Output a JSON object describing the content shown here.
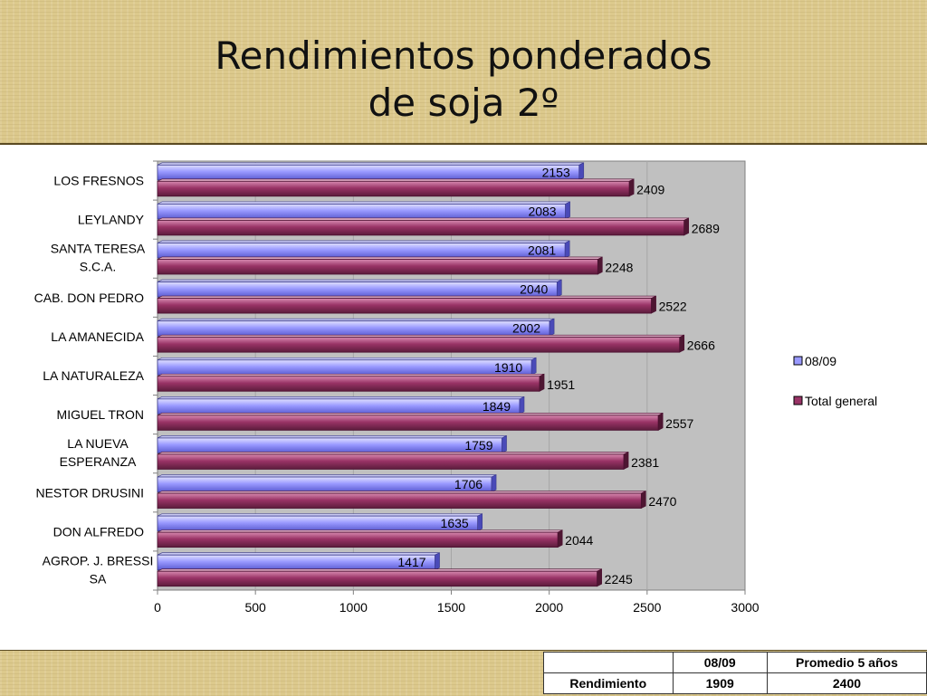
{
  "title": {
    "line1": "Rendimientos ponderados",
    "line2": "de soja 2º"
  },
  "chart_data": {
    "type": "bar",
    "orientation": "horizontal",
    "categories": [
      [
        "LOS FRESNOS"
      ],
      [
        "LEYLANDY"
      ],
      [
        "SANTA TERESA",
        "S.C.A."
      ],
      [
        "CAB. DON PEDRO"
      ],
      [
        "LA AMANECIDA"
      ],
      [
        "LA NATURALEZA"
      ],
      [
        "MIGUEL TRON"
      ],
      [
        "LA NUEVA",
        "ESPERANZA"
      ],
      [
        "NESTOR DRUSINI"
      ],
      [
        "DON ALFREDO"
      ],
      [
        "AGROP. J. BRESSI",
        "SA"
      ]
    ],
    "series": [
      {
        "name": "08/09",
        "color": "#9999ff",
        "values": [
          2153,
          2083,
          2081,
          2040,
          2002,
          1910,
          1849,
          1759,
          1706,
          1635,
          1417
        ]
      },
      {
        "name": "Total general",
        "color": "#993366",
        "values": [
          2409,
          2689,
          2248,
          2522,
          2666,
          1951,
          2557,
          2381,
          2470,
          2044,
          2245
        ]
      }
    ],
    "xlim": [
      0,
      3000
    ],
    "xticks": [
      0,
      500,
      1000,
      1500,
      2000,
      2500,
      3000
    ],
    "grid": true,
    "legend": "right"
  },
  "table": {
    "header": [
      "",
      "08/09",
      "Promedio 5 años"
    ],
    "rows": [
      [
        "Rendimiento",
        "1909",
        "2400"
      ]
    ]
  }
}
